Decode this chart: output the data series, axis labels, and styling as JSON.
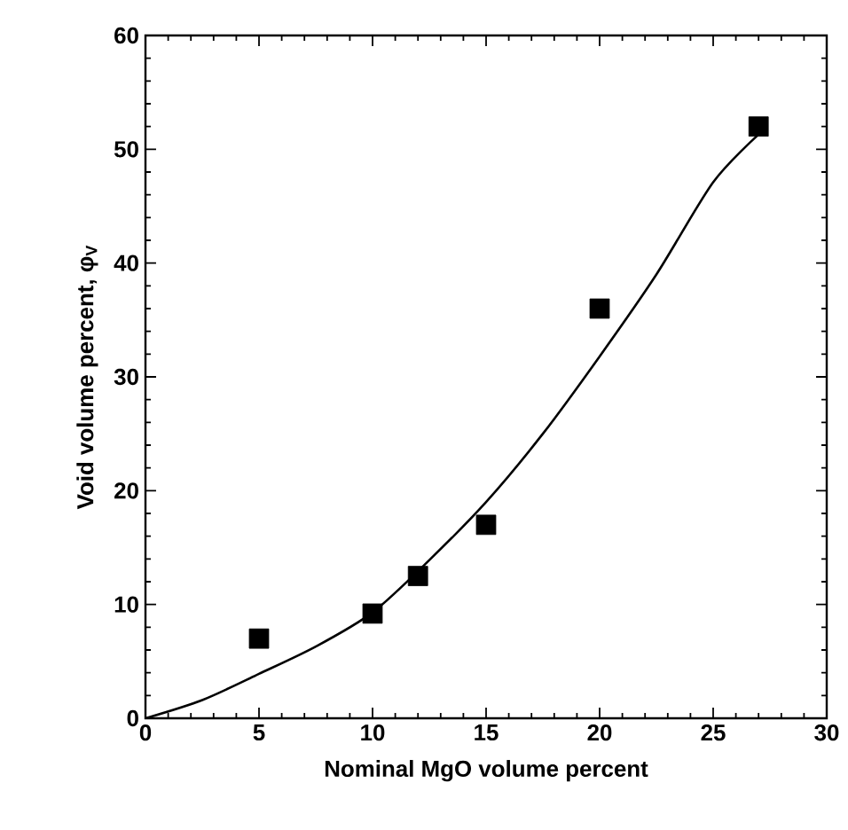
{
  "chart_data": {
    "type": "scatter",
    "xlabel": "Nominal MgO volume percent",
    "ylabel": "Void volume percent, φ$_{V}$",
    "xlim": [
      0,
      30
    ],
    "ylim": [
      0,
      60
    ],
    "xticks": [
      0,
      5,
      10,
      15,
      20,
      25,
      30
    ],
    "yticks": [
      0,
      10,
      20,
      30,
      40,
      50,
      60
    ],
    "grid": false,
    "marker": "square",
    "series": [
      {
        "color": "#000000",
        "x": [
          5,
          10,
          12,
          15,
          20,
          27
        ],
        "values": [
          7,
          9.2,
          12.5,
          17,
          36,
          52
        ]
      },
      {
        "type": "line",
        "color": "#000000",
        "marker": "none",
        "x": [
          0,
          2.5,
          5,
          7.5,
          10,
          12.5,
          15,
          17.5,
          20,
          22.5,
          25,
          27
        ],
        "values": [
          0,
          1.6,
          3.9,
          6.3,
          9.3,
          13.9,
          19,
          25,
          31.8,
          39,
          47.1,
          51.3
        ]
      }
    ]
  }
}
